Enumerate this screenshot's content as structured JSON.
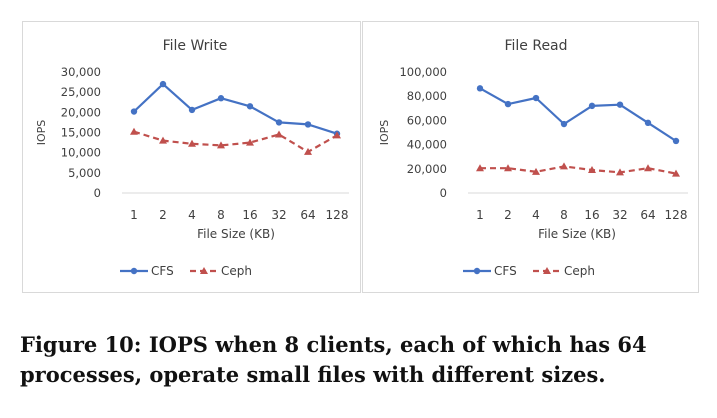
{
  "chart_data": [
    {
      "type": "line",
      "title": "File Write",
      "xlabel": "File Size (KB)",
      "ylabel": "IOPS",
      "categories": [
        "1",
        "2",
        "4",
        "8",
        "16",
        "32",
        "64",
        "128"
      ],
      "y_ticks": [
        "30,000",
        "25,000",
        "20,000",
        "15,000",
        "10,000",
        "5,000",
        "0"
      ],
      "ylim": [
        0,
        30000
      ],
      "grid": false,
      "legend_position": "bottom",
      "series": [
        {
          "name": "CFS",
          "color": "#4472C4",
          "style": "solid",
          "marker": "circle",
          "values": [
            20200,
            27000,
            20600,
            23500,
            21500,
            17500,
            17000,
            14700
          ]
        },
        {
          "name": "Ceph",
          "color": "#C0504D",
          "style": "dashed",
          "marker": "triangle",
          "values": [
            15200,
            13000,
            12200,
            11800,
            12500,
            14500,
            10200,
            14300
          ]
        }
      ]
    },
    {
      "type": "line",
      "title": "File Read",
      "xlabel": "File Size (KB)",
      "ylabel": "IOPS",
      "categories": [
        "1",
        "2",
        "4",
        "8",
        "16",
        "32",
        "64",
        "128"
      ],
      "y_ticks": [
        "100,000",
        "80,000",
        "60,000",
        "40,000",
        "20,000",
        "0"
      ],
      "ylim": [
        0,
        100000
      ],
      "grid": false,
      "legend_position": "bottom",
      "series": [
        {
          "name": "CFS",
          "color": "#4472C4",
          "style": "solid",
          "marker": "circle",
          "values": [
            86500,
            73500,
            78500,
            57000,
            72000,
            73000,
            58000,
            43000
          ]
        },
        {
          "name": "Ceph",
          "color": "#C0504D",
          "style": "dashed",
          "marker": "triangle",
          "values": [
            20500,
            20500,
            17500,
            22000,
            19000,
            17000,
            20500,
            16000
          ]
        }
      ]
    }
  ],
  "caption": "Figure 10: IOPS when 8 clients, each of which has 64 processes, operate small files with different sizes."
}
